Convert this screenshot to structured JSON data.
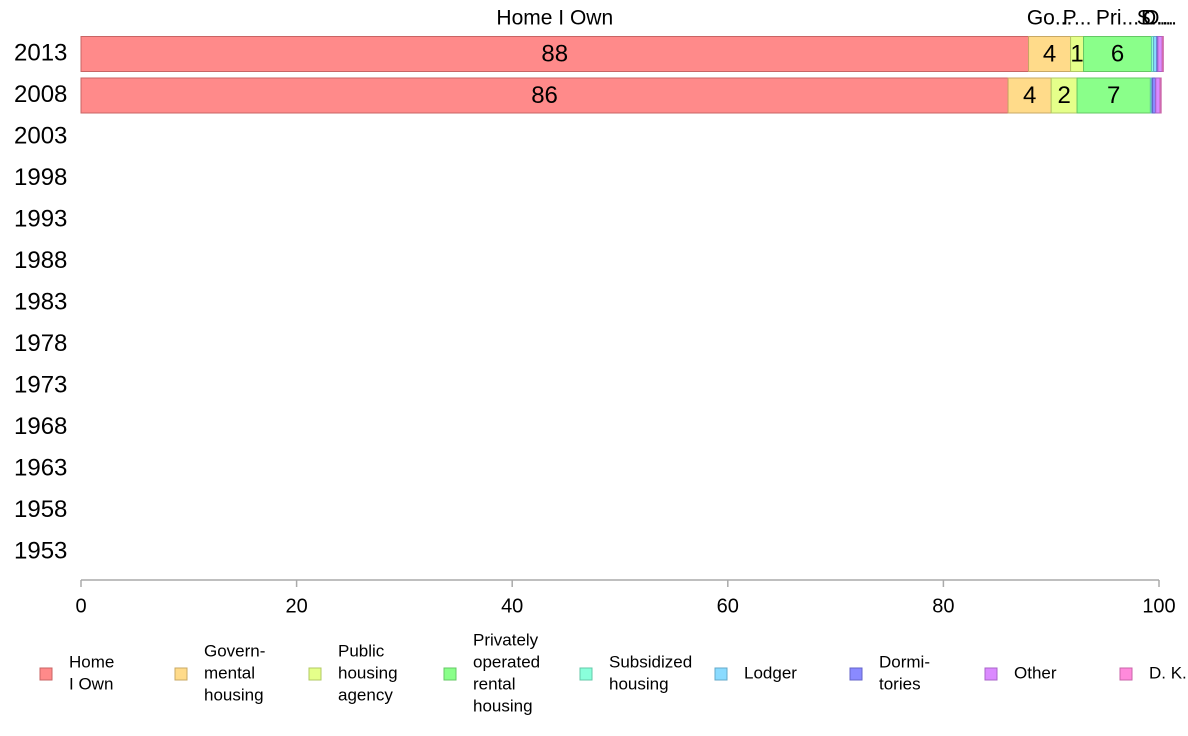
{
  "chart_data": {
    "type": "bar",
    "orientation": "horizontal",
    "stacked": true,
    "categories": [
      "2013",
      "2008",
      "2003",
      "1998",
      "1993",
      "1988",
      "1983",
      "1978",
      "1973",
      "1968",
      "1963",
      "1958",
      "1953"
    ],
    "series": [
      {
        "name": "Home I Own",
        "legend_lines": [
          "Home",
          "I Own"
        ],
        "color": "#ff8a8a",
        "stroke": "#c86464",
        "values": [
          87.9,
          86.0,
          null,
          null,
          null,
          null,
          null,
          null,
          null,
          null,
          null,
          null,
          null
        ],
        "data_labels": [
          "88",
          "86"
        ],
        "top_label": "Home I Own"
      },
      {
        "name": "Governmental housing",
        "legend_lines": [
          "Govern-",
          "mental",
          " housing"
        ],
        "color": "#ffdb8a",
        "stroke": "#c8a864",
        "values": [
          3.9,
          4.0,
          null,
          null,
          null,
          null,
          null,
          null,
          null,
          null,
          null,
          null,
          null
        ],
        "data_labels": [
          "4",
          "4"
        ],
        "top_label": "Go..."
      },
      {
        "name": "Public housing agency",
        "legend_lines": [
          "Public",
          "housing",
          "agency"
        ],
        "color": "#e5ff8a",
        "stroke": "#b2c864",
        "values": [
          1.2,
          2.4,
          null,
          null,
          null,
          null,
          null,
          null,
          null,
          null,
          null,
          null,
          null
        ],
        "data_labels": [
          "1",
          "2"
        ],
        "top_label": "P..."
      },
      {
        "name": "Privately operated rental housing",
        "legend_lines": [
          "Privately",
          "operated",
          "rental",
          "housing"
        ],
        "color": "#8aff8a",
        "stroke": "#64c864",
        "values": [
          6.3,
          6.8,
          null,
          null,
          null,
          null,
          null,
          null,
          null,
          null,
          null,
          null,
          null
        ],
        "data_labels": [
          "6",
          "7"
        ],
        "top_label": "Pri..."
      },
      {
        "name": "Subsidized housing",
        "legend_lines": [
          "Subsidized",
          " housing"
        ],
        "color": "#8affdb",
        "stroke": "#64c8a8",
        "values": [
          0.2,
          0.1,
          null,
          null,
          null,
          null,
          null,
          null,
          null,
          null,
          null,
          null,
          null
        ],
        "data_labels": [
          "",
          ""
        ],
        "top_label": "S..."
      },
      {
        "name": "Lodger",
        "legend_lines": [
          "Lodger"
        ],
        "color": "#8adbff",
        "stroke": "#64a8c8",
        "values": [
          0.3,
          0.1,
          null,
          null,
          null,
          null,
          null,
          null,
          null,
          null,
          null,
          null,
          null
        ],
        "data_labels": [
          "",
          ""
        ],
        "top_label": ""
      },
      {
        "name": "Dormitories",
        "legend_lines": [
          "Dormi-",
          "tories"
        ],
        "color": "#8a8aff",
        "stroke": "#6464c8",
        "values": [
          0.1,
          0.3,
          null,
          null,
          null,
          null,
          null,
          null,
          null,
          null,
          null,
          null,
          null
        ],
        "data_labels": [
          "",
          ""
        ],
        "top_label": "D..."
      },
      {
        "name": "Other",
        "legend_lines": [
          "Other"
        ],
        "color": "#db8aff",
        "stroke": "#a864c8",
        "values": [
          0.4,
          0.4,
          null,
          null,
          null,
          null,
          null,
          null,
          null,
          null,
          null,
          null,
          null
        ],
        "data_labels": [
          "",
          ""
        ],
        "top_label": "O..."
      },
      {
        "name": "D. K.",
        "legend_lines": [
          "D. K."
        ],
        "color": "#ff8adb",
        "stroke": "#c864a8",
        "values": [
          0.1,
          0.1,
          null,
          null,
          null,
          null,
          null,
          null,
          null,
          null,
          null,
          null,
          null
        ],
        "data_labels": [
          "",
          ""
        ],
        "top_label": ""
      }
    ],
    "xlim": [
      0,
      100
    ],
    "xticks": [
      "0",
      "20",
      "40",
      "60",
      "80",
      "100"
    ],
    "title": "",
    "xlabel": "",
    "ylabel": "",
    "grid": false,
    "legend_position": "bottom"
  }
}
